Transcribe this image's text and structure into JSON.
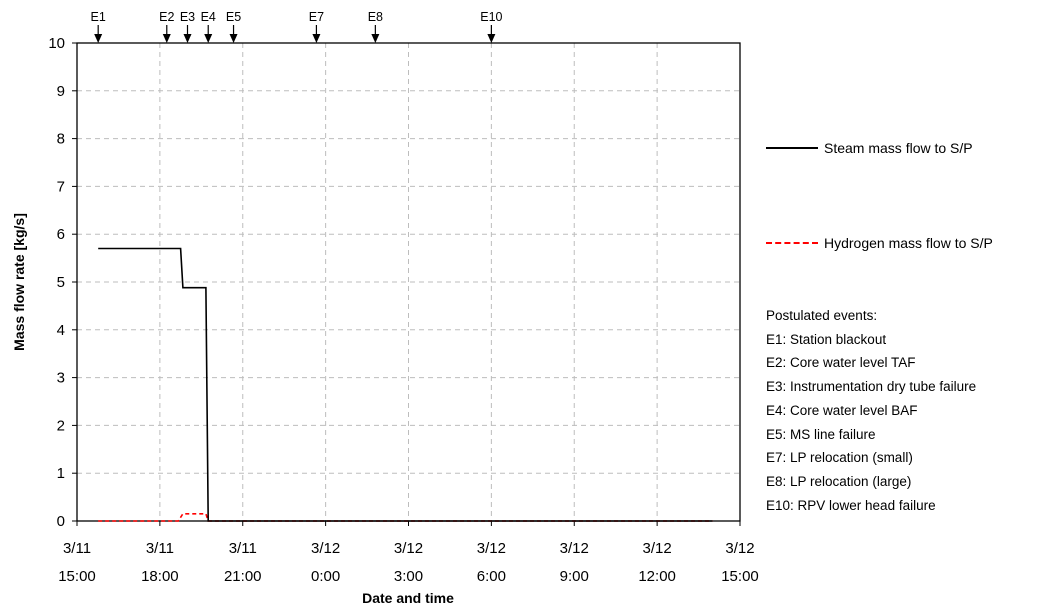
{
  "chart_data": {
    "type": "line",
    "title": "",
    "xlabel": "Date and time",
    "ylabel": "Mass flow rate [kg/s]",
    "ylim": [
      0,
      10
    ],
    "yticks": [
      0,
      1,
      2,
      3,
      4,
      5,
      6,
      7,
      8,
      9,
      10
    ],
    "xlim": [
      "3/11 15:00",
      "3/12 15:00"
    ],
    "xtick_dates": [
      "3/11",
      "3/11",
      "3/11",
      "3/12",
      "3/12",
      "3/12",
      "3/12",
      "3/12",
      "3/12"
    ],
    "xtick_times": [
      "15:00",
      "18:00",
      "21:00",
      "0:00",
      "3:00",
      "6:00",
      "9:00",
      "12:00",
      "15:00"
    ],
    "xtick_values": [
      "3/11 15:00",
      "3/11 18:00",
      "3/11 21:00",
      "3/12 0:00",
      "3/12 3:00",
      "3/12 6:00",
      "3/12 9:00",
      "3/12 12:00",
      "3/12 15:00"
    ],
    "grid": true,
    "legend_placement": "right",
    "series": [
      {
        "name": "Steam mass flow to S/P",
        "color": "#000000",
        "style": "solid",
        "points": [
          [
            "3/11 15:46",
            5.7
          ],
          [
            "3/11 18:45",
            5.7
          ],
          [
            "3/11 18:50",
            4.88
          ],
          [
            "3/11 19:40",
            4.88
          ],
          [
            "3/11 19:45",
            0
          ],
          [
            "3/12 14:00",
            0
          ]
        ]
      },
      {
        "name": "Hydrogen mass flow to S/P",
        "color": "#ff0000",
        "style": "dashed",
        "points": [
          [
            "3/11 15:46",
            0
          ],
          [
            "3/11 18:40",
            0
          ],
          [
            "3/11 18:50",
            0.15
          ],
          [
            "3/11 19:40",
            0.15
          ],
          [
            "3/11 19:45",
            0
          ],
          [
            "3/12 14:00",
            0
          ]
        ]
      }
    ],
    "event_markers": [
      {
        "label": "E1",
        "time": "3/11 15:46"
      },
      {
        "label": "E2",
        "time": "3/11 18:15"
      },
      {
        "label": "E3",
        "time": "3/11 19:00"
      },
      {
        "label": "E4",
        "time": "3/11 19:45"
      },
      {
        "label": "E5",
        "time": "3/11 20:40"
      },
      {
        "label": "E7",
        "time": "3/11 23:40"
      },
      {
        "label": "E8",
        "time": "3/12 1:48"
      },
      {
        "label": "E10",
        "time": "3/12 6:00"
      }
    ],
    "events_heading": "Postulated events:",
    "events": [
      "E1: Station blackout",
      "E2: Core water level TAF",
      "E3: Instrumentation dry tube failure",
      "E4: Core water level BAF",
      "E5: MS line failure",
      "E7: LP relocation (small)",
      "E8: LP relocation (large)",
      "E10: RPV lower head failure"
    ]
  }
}
